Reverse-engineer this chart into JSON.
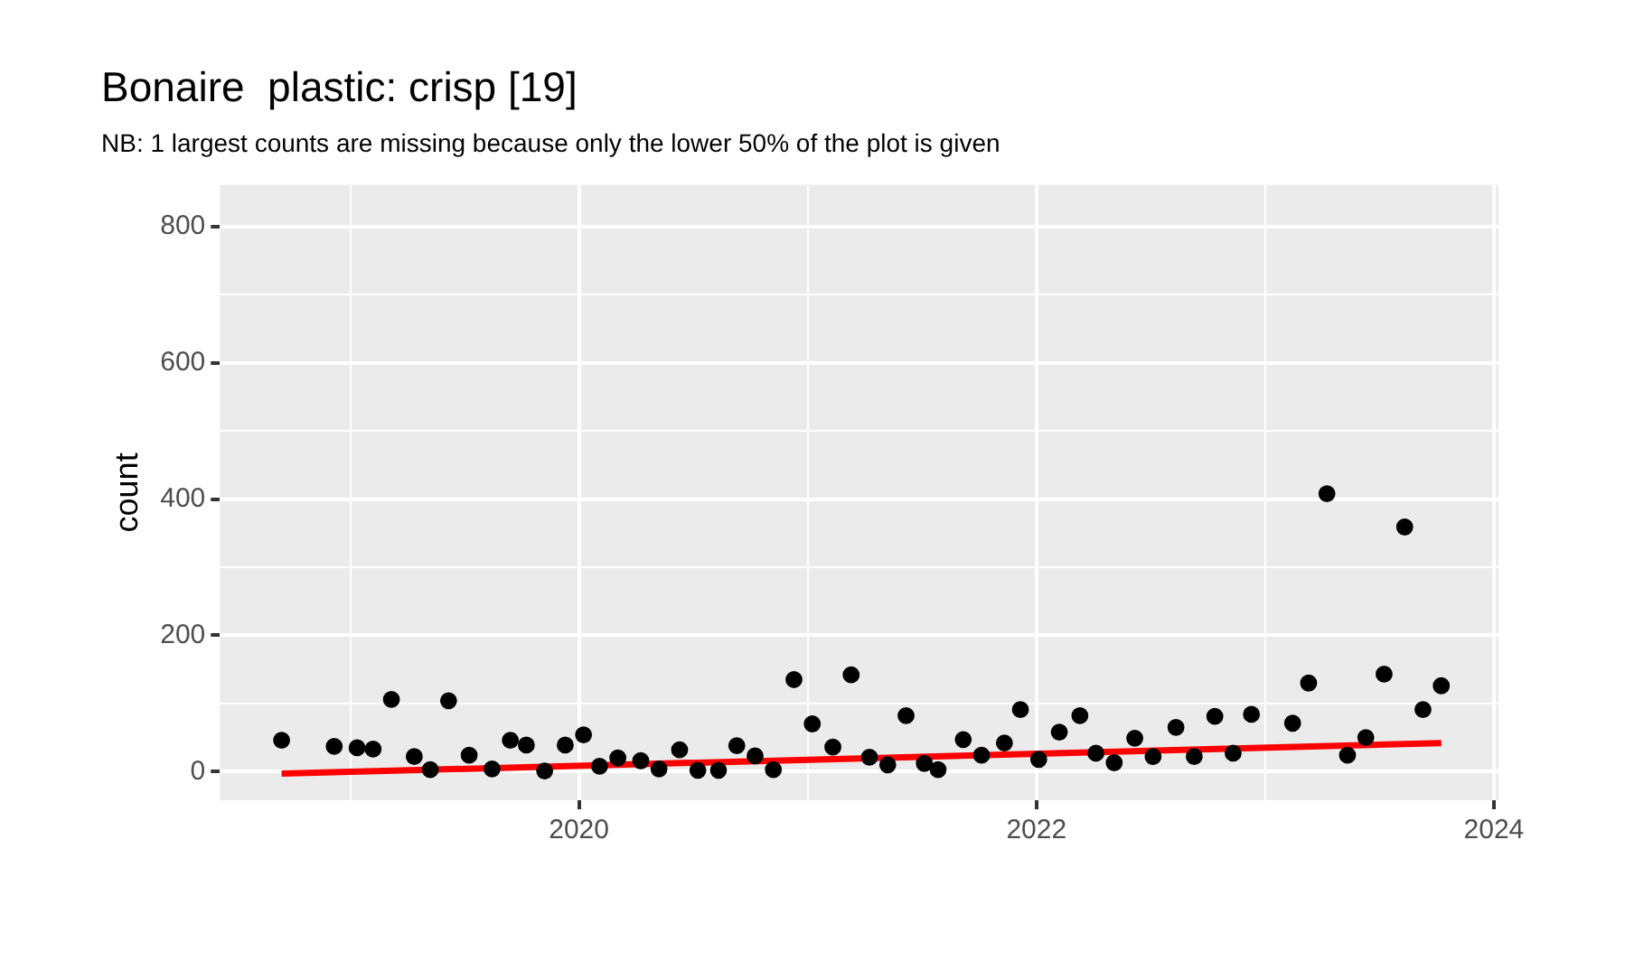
{
  "chart_data": {
    "type": "scatter",
    "title": "Bonaire  plastic: crisp [19]",
    "subtitle": "NB: 1 largest counts are missing because only the lower 50% of the plot is given",
    "ylabel": "count",
    "xlim": [
      2018.43,
      2024.02
    ],
    "xticks": [
      {
        "value": 2019,
        "label": null
      },
      2020,
      {
        "value": 2021,
        "label": null
      },
      2022,
      {
        "value": 2023,
        "label": null
      },
      2024
    ],
    "ylim": [
      -42,
      861
    ],
    "yticks": [
      0,
      {
        "value": 100,
        "label": null
      },
      200,
      {
        "value": 300,
        "label": null
      },
      400,
      {
        "value": 500,
        "label": null
      },
      600,
      {
        "value": 700,
        "label": null
      },
      800
    ],
    "grid": true,
    "legend": false,
    "marker": "circle",
    "series": [
      {
        "color": "#000000",
        "x": [
          2018.7,
          2018.93,
          2019.03,
          2019.1,
          2019.18,
          2019.28,
          2019.35,
          2019.43,
          2019.52,
          2019.62,
          2019.7,
          2019.77,
          2019.85,
          2019.94,
          2020.02,
          2020.09,
          2020.17,
          2020.27,
          2020.35,
          2020.44,
          2020.52,
          2020.61,
          2020.69,
          2020.77,
          2020.85,
          2020.94,
          2021.02,
          2021.11,
          2021.19,
          2021.27,
          2021.35,
          2021.43,
          2021.51,
          2021.57,
          2021.68,
          2021.76,
          2021.86,
          2021.93,
          2022.01,
          2022.1,
          2022.19,
          2022.26,
          2022.34,
          2022.43,
          2022.51,
          2022.61,
          2022.69,
          2022.78,
          2022.86,
          2022.94,
          2023.12,
          2023.19,
          2023.27,
          2023.36,
          2023.44,
          2023.52,
          2023.61,
          2023.69,
          2023.77
        ],
        "values": [
          46,
          37,
          35,
          33,
          106,
          22,
          3,
          104,
          24,
          4,
          46,
          39,
          1,
          39,
          54,
          8,
          20,
          16,
          4,
          32,
          2,
          2,
          38,
          23,
          3,
          135,
          70,
          36,
          142,
          21,
          10,
          82,
          12,
          3,
          47,
          24,
          42,
          91,
          18,
          58,
          82,
          27,
          13,
          49,
          22,
          65,
          22,
          81,
          27,
          84,
          71,
          130,
          408,
          24,
          50,
          143,
          359,
          91,
          126
        ]
      },
      {
        "type": "line",
        "color": "#ff0000",
        "marker": "none",
        "line_style": "solid",
        "x": [
          2018.7,
          2023.77
        ],
        "values": [
          -3,
          42
        ]
      }
    ]
  }
}
